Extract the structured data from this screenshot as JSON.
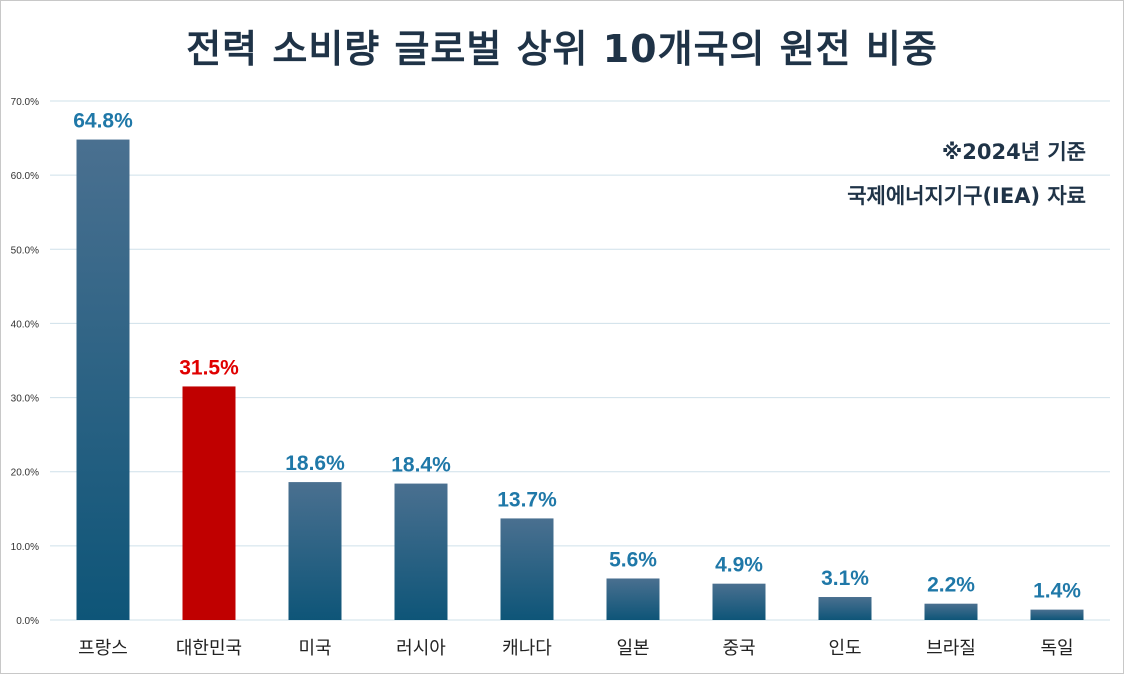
{
  "chart_data": {
    "type": "bar",
    "title": "전력 소비량 글로벌 상위 10개국의 원전 비중",
    "notes": [
      "※2024년 기준",
      "국제에너지기구(IEA) 자료"
    ],
    "categories": [
      "프랑스",
      "대한민국",
      "미국",
      "러시아",
      "캐나다",
      "일본",
      "중국",
      "인도",
      "브라질",
      "독일"
    ],
    "values": [
      64.8,
      31.5,
      18.6,
      18.4,
      13.7,
      5.6,
      4.9,
      3.1,
      2.2,
      1.4
    ],
    "value_labels": [
      "64.8%",
      "31.5%",
      "18.6%",
      "18.4%",
      "13.7%",
      "5.6%",
      "4.9%",
      "3.1%",
      "2.2%",
      "1.4%"
    ],
    "ylim": [
      0,
      70
    ],
    "yticks": [
      0,
      10,
      20,
      30,
      40,
      50,
      60,
      70
    ],
    "ytick_labels": [
      "0.0%",
      "10.0%",
      "20.0%",
      "30.0%",
      "40.0%",
      "50.0%",
      "60.0%",
      "70.0%"
    ],
    "xlabel": "",
    "ylabel": "",
    "grid": true,
    "highlight_index": 1,
    "colors": {
      "bar_top": "#4a7090",
      "bar_bottom": "#0e5578",
      "highlight": "#c00000",
      "label": "#1f78a8",
      "highlight_label": "#e00000",
      "grid": "#cfe0ea"
    }
  }
}
